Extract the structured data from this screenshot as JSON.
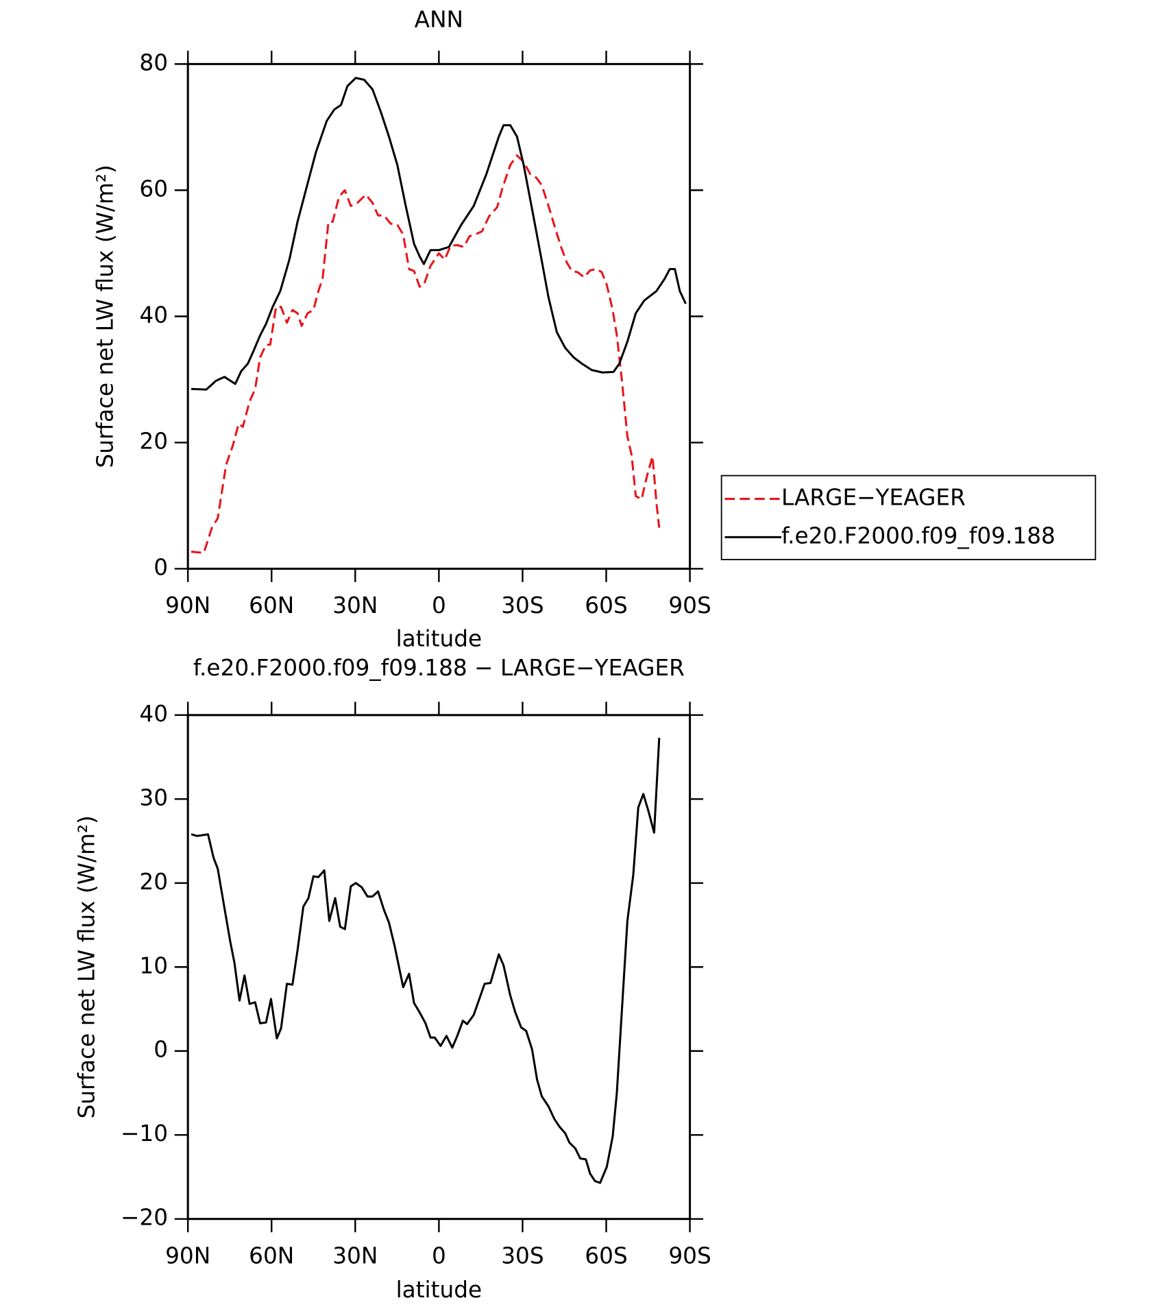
{
  "chart_data": [
    {
      "type": "line",
      "title": "ANN",
      "xlabel": "latitude",
      "ylabel": "Surface net LW flux (W/m²)",
      "xlim": [
        90,
        -90
      ],
      "xticks": [
        {
          "value": 90,
          "label": "90N"
        },
        {
          "value": 60,
          "label": "60N"
        },
        {
          "value": 30,
          "label": "30N"
        },
        0,
        {
          "value": -30,
          "label": "30S"
        },
        {
          "value": -60,
          "label": "60S"
        },
        {
          "value": -90,
          "label": "90S"
        }
      ],
      "ylim": [
        0,
        80
      ],
      "yticks": [
        0,
        20,
        40,
        60,
        80
      ],
      "legend": "outside-right",
      "series": [
        {
          "name": "LARGE−YEAGER",
          "color": "#e8141a",
          "line_style": "dashed",
          "x": [
            88.8,
            84.3,
            81.4,
            79.3,
            76.3,
            73.9,
            71.8,
            70.3,
            67.9,
            65.9,
            64.1,
            62,
            60.5,
            58.4,
            56.6,
            54.5,
            52.5,
            50.7,
            49.2,
            47.1,
            45,
            43.2,
            41.7,
            39.6,
            38.1,
            35.8,
            33.7,
            31.6,
            29.2,
            26.2,
            23.8,
            21.8,
            19.7,
            17.3,
            14.9,
            12.8,
            10.7,
            8.9,
            6.9,
            5.4,
            3,
            0,
            -2.1,
            -4.2,
            -6.6,
            -8.9,
            -11,
            -13.1,
            -15.5,
            -17.9,
            -20.9,
            -22.9,
            -25.6,
            -28,
            -30.4,
            -32.8,
            -34.9,
            -36.9,
            -39.3,
            -41.7,
            -43.8,
            -45.9,
            -47.7,
            -49.8,
            -52.1,
            -54.2,
            -56.6,
            -58.4,
            -60.2,
            -62.3,
            -63.8,
            -65.6,
            -67.6,
            -69.1,
            -70.6,
            -72.7,
            -74.5,
            -76.6,
            -78.1,
            -79
          ],
          "values": [
            2.7,
            2.5,
            6.5,
            8,
            16.5,
            19.5,
            23,
            22.5,
            26.5,
            28.5,
            33.5,
            35.5,
            35.5,
            41.5,
            41.5,
            39,
            41,
            40.5,
            38.5,
            40.5,
            41,
            44,
            46,
            55,
            55,
            59,
            60,
            57.5,
            58,
            59.3,
            58,
            56,
            56,
            54.7,
            54.5,
            53,
            47.5,
            47.2,
            44.7,
            45,
            48,
            50,
            49,
            51.2,
            51.3,
            51,
            52.7,
            53,
            53.5,
            55.8,
            57.3,
            60.5,
            64,
            65.5,
            64.5,
            62.5,
            62,
            60.8,
            57.5,
            54,
            51,
            48.5,
            47.2,
            47,
            46.2,
            47.3,
            47.5,
            47,
            45,
            41,
            37,
            30,
            21,
            18,
            11.5,
            11,
            14.5,
            17.8,
            10,
            6.5
          ]
        },
        {
          "name": "f.e20.F2000.f09_f09.188",
          "color": "#000000",
          "line_style": "solid",
          "x": [
            88.8,
            83.4,
            79.9,
            76.9,
            73,
            70.9,
            68.5,
            66.5,
            64.1,
            62,
            59.6,
            56.9,
            53.6,
            50.7,
            47.7,
            44.1,
            40.2,
            37.5,
            35.1,
            32.8,
            29.8,
            26.8,
            23.8,
            20.9,
            17.9,
            14.9,
            11.9,
            8.9,
            6.9,
            5.4,
            3,
            0,
            -3.6,
            -8,
            -12.5,
            -17,
            -21.5,
            -23.2,
            -25.6,
            -28,
            -30.4,
            -33.4,
            -36.4,
            -39.3,
            -42.3,
            -45.3,
            -48.3,
            -51.3,
            -54.8,
            -58.7,
            -62.6,
            -64.7,
            -67.6,
            -70.6,
            -73.6,
            -78,
            -81,
            -82.8,
            -84.6,
            -86.4,
            -88.5
          ],
          "values": [
            28.5,
            28.4,
            29.8,
            30.4,
            29.3,
            31.3,
            32.5,
            34.5,
            37,
            38.8,
            41.5,
            44,
            49,
            55,
            60,
            66,
            71,
            72.8,
            73.5,
            76.5,
            77.8,
            77.5,
            76,
            72.5,
            68.5,
            64,
            57.5,
            51.5,
            49.5,
            48.3,
            50.5,
            50.5,
            51,
            54.5,
            57.5,
            62.5,
            68.5,
            70.3,
            70.3,
            68.5,
            64,
            57,
            50,
            43,
            37.5,
            35,
            33.5,
            32.5,
            31.5,
            31.1,
            31.2,
            32.5,
            36,
            40.5,
            42.5,
            44,
            46,
            47.5,
            47.5,
            44,
            42
          ]
        }
      ]
    },
    {
      "type": "line",
      "title": "f.e20.F2000.f09_f09.188 − LARGE−YEAGER",
      "xlabel": "latitude",
      "ylabel": "Surface net LW flux (W/m²)",
      "xlim": [
        90,
        -90
      ],
      "xticks": [
        {
          "value": 90,
          "label": "90N"
        },
        {
          "value": 60,
          "label": "60N"
        },
        {
          "value": 30,
          "label": "30N"
        },
        0,
        {
          "value": -30,
          "label": "30S"
        },
        {
          "value": -60,
          "label": "60S"
        },
        {
          "value": -90,
          "label": "90S"
        }
      ],
      "ylim": [
        -20,
        40
      ],
      "yticks": [
        {
          "value": -20,
          "label": "−20"
        },
        {
          "value": -10,
          "label": "−10"
        },
        0,
        10,
        20,
        30,
        40
      ],
      "color": "#000000",
      "x": [
        88.8,
        86.7,
        82.8,
        80.8,
        79.3,
        76.9,
        74.8,
        73.3,
        71.5,
        69.7,
        67.9,
        65.9,
        64.1,
        62,
        60.2,
        58.1,
        56.6,
        54.5,
        52.5,
        50.7,
        48.6,
        46.8,
        45,
        43.2,
        41.1,
        39.3,
        37.2,
        35.4,
        33.7,
        31.6,
        29.8,
        27.7,
        25.6,
        23.8,
        21.8,
        19.7,
        17.9,
        15.8,
        12.8,
        10.7,
        8.9,
        6.9,
        4.8,
        3,
        1.5,
        -0.6,
        -2.7,
        -4.8,
        -6.6,
        -8.6,
        -10.1,
        -12.5,
        -14.6,
        -16.4,
        -18.5,
        -21.5,
        -23.2,
        -25.6,
        -27.4,
        -29.5,
        -31.3,
        -33.4,
        -35.2,
        -36.9,
        -39.3,
        -41.4,
        -43.2,
        -45.3,
        -46.8,
        -48.9,
        -50.7,
        -52.7,
        -54.2,
        -56,
        -57.8,
        -60.2,
        -62.3,
        -63.8,
        -65.6,
        -67.6,
        -69.7,
        -71.5,
        -73.3,
        -75.1,
        -77.2,
        -79
      ],
      "values": [
        25.8,
        25.6,
        25.8,
        23,
        21.7,
        17,
        13,
        10.5,
        6,
        9,
        5.6,
        5.8,
        3.3,
        3.4,
        6.2,
        1.5,
        2.7,
        8,
        7.9,
        12,
        17.2,
        18.2,
        20.8,
        20.7,
        21.5,
        15.5,
        18.2,
        14.8,
        14.5,
        19.6,
        20,
        19.5,
        18.4,
        18.4,
        19,
        16.8,
        15.3,
        12.4,
        7.6,
        9.2,
        5.7,
        4.6,
        3.3,
        1.6,
        1.6,
        0.6,
        1.8,
        0.4,
        1.8,
        3.6,
        3.2,
        4.3,
        6.3,
        8,
        8.1,
        11.5,
        10.2,
        6.6,
        4.6,
        2.8,
        2.4,
        0.2,
        -3.4,
        -5.4,
        -6.6,
        -8.1,
        -9,
        -9.8,
        -10.9,
        -11.6,
        -12.8,
        -12.9,
        -14.6,
        -15.5,
        -15.7,
        -13.8,
        -10.2,
        -5,
        4.7,
        15.5,
        21,
        29,
        30.6,
        28.6,
        26,
        37.3
      ]
    }
  ]
}
